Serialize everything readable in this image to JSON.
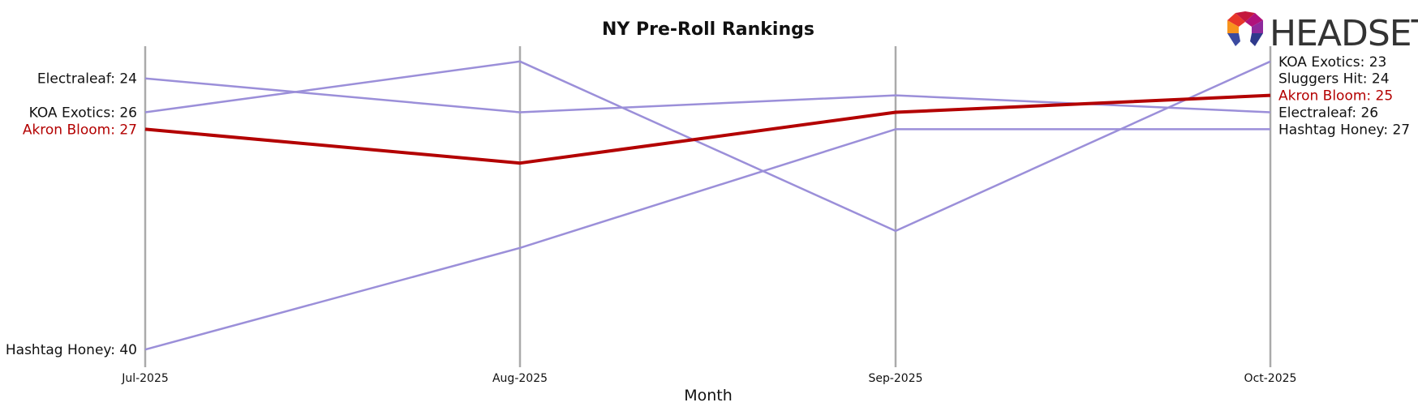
{
  "chart_data": {
    "type": "line",
    "title": "NY Pre-Roll Rankings",
    "xlabel": "Month",
    "ylabel": "",
    "categories": [
      "Jul-2025",
      "Aug-2025",
      "Sep-2025",
      "Oct-2025"
    ],
    "y_inverted": true,
    "ylim": [
      22.1,
      40.9
    ],
    "grid": "vertical lines at each month",
    "legend": "none; series labels at line endpoints",
    "highlight_color": "#b30000",
    "series_color": "#9b8fd9",
    "axis_color": "#aaaaaa",
    "series": [
      {
        "name": "Electraleaf",
        "values": [
          24,
          26,
          25,
          26
        ],
        "highlight": false
      },
      {
        "name": "KOA Exotics",
        "values": [
          26,
          23,
          33,
          23
        ],
        "highlight": false
      },
      {
        "name": "Hashtag Honey",
        "values": [
          40,
          34,
          27,
          27
        ],
        "highlight": false
      },
      {
        "name": "Sluggers Hit",
        "values": [
          null,
          null,
          null,
          24
        ],
        "highlight": false
      },
      {
        "name": "Akron Bloom",
        "values": [
          27,
          29,
          26,
          25
        ],
        "highlight": true
      }
    ],
    "start_labels": [
      {
        "series": "Electraleaf",
        "text": "Electraleaf: 24"
      },
      {
        "series": "KOA Exotics",
        "text": "KOA Exotics: 26"
      },
      {
        "series": "Akron Bloom",
        "text": "Akron Bloom: 27"
      },
      {
        "series": "Hashtag Honey",
        "text": "Hashtag Honey: 40"
      }
    ],
    "end_labels": [
      {
        "series": "KOA Exotics",
        "text": "KOA Exotics: 23"
      },
      {
        "series": "Sluggers Hit",
        "text": "Sluggers Hit: 24"
      },
      {
        "series": "Akron Bloom",
        "text": "Akron Bloom: 25"
      },
      {
        "series": "Electraleaf",
        "text": "Electraleaf: 26"
      },
      {
        "series": "Hashtag Honey",
        "text": "Hashtag Honey: 27"
      }
    ]
  },
  "logo": {
    "text": "HEADSET",
    "icon": "headset-logo-icon"
  }
}
